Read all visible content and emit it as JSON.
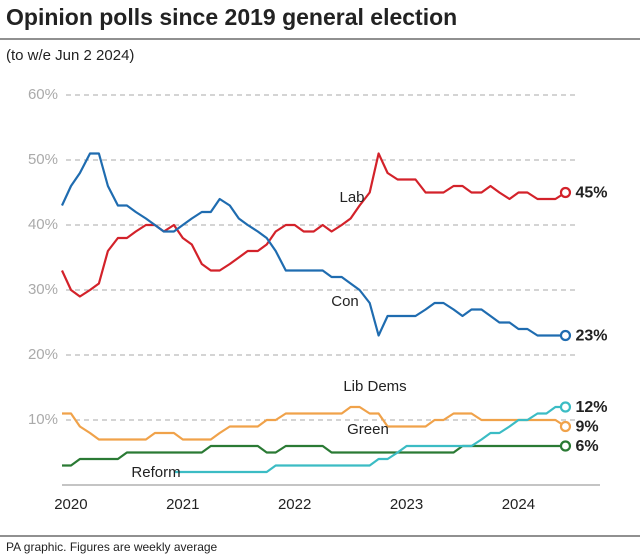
{
  "chart_data": {
    "type": "line",
    "title": "Opinion polls since 2019 general election",
    "subtitle": "(to w/e Jun 2 2024)",
    "footer": "PA graphic. Figures are weekly average",
    "x": [
      2019.92,
      2020.0,
      2020.08,
      2020.17,
      2020.25,
      2020.33,
      2020.42,
      2020.5,
      2020.58,
      2020.67,
      2020.75,
      2020.83,
      2020.92,
      2021.0,
      2021.08,
      2021.17,
      2021.25,
      2021.33,
      2021.42,
      2021.5,
      2021.58,
      2021.67,
      2021.75,
      2021.83,
      2021.92,
      2022.0,
      2022.08,
      2022.17,
      2022.25,
      2022.33,
      2022.42,
      2022.5,
      2022.58,
      2022.67,
      2022.75,
      2022.83,
      2022.92,
      2023.0,
      2023.08,
      2023.17,
      2023.25,
      2023.33,
      2023.42,
      2023.5,
      2023.58,
      2023.67,
      2023.75,
      2023.83,
      2023.92,
      2024.0,
      2024.08,
      2024.17,
      2024.25,
      2024.33,
      2024.42
    ],
    "xlim": [
      2019.92,
      2024.55
    ],
    "xticks": [
      {
        "value": 2020.5,
        "label": "2020"
      },
      {
        "value": 2021.5,
        "label": "2021"
      },
      {
        "value": 2022.5,
        "label": "2022"
      },
      {
        "value": 2023.5,
        "label": "2023"
      },
      {
        "value": 2024.5,
        "label": "2024"
      }
    ],
    "ylim": [
      0,
      60
    ],
    "yticks": [
      {
        "value": 10,
        "label": "10%"
      },
      {
        "value": 20,
        "label": "20%"
      },
      {
        "value": 30,
        "label": "30%"
      },
      {
        "value": 40,
        "label": "40%"
      },
      {
        "value": 50,
        "label": "50%"
      },
      {
        "value": 60,
        "label": "60%"
      }
    ],
    "grid": true,
    "series": [
      {
        "name": "Lab",
        "color": "#d3222a",
        "values": [
          33,
          30,
          29,
          30,
          31,
          36,
          38,
          38,
          39,
          40,
          40,
          39,
          40,
          38,
          37,
          34,
          33,
          33,
          34,
          35,
          36,
          36,
          37,
          39,
          40,
          40,
          39,
          39,
          40,
          39,
          40,
          41,
          43,
          45,
          51,
          48,
          47,
          47,
          47,
          45,
          45,
          45,
          46,
          46,
          45,
          45,
          46,
          45,
          44,
          45,
          45,
          44,
          44,
          44,
          45
        ],
        "value_labels": [
          null,
          null,
          null,
          null,
          null,
          null,
          null,
          null,
          null,
          null,
          null,
          null,
          null,
          null,
          null,
          null,
          null,
          null,
          null,
          null,
          null,
          null,
          null,
          null,
          null,
          null,
          null,
          null,
          null,
          null,
          null,
          null,
          null,
          null,
          null,
          null,
          null,
          null,
          null,
          null,
          null,
          null,
          null,
          null,
          null,
          null,
          null,
          null,
          null,
          null,
          null,
          null,
          null,
          null,
          "45%"
        ]
      },
      {
        "name": "Con",
        "color": "#1f6cb0",
        "values": [
          43,
          46,
          48,
          51,
          51,
          46,
          43,
          43,
          42,
          41,
          40,
          39,
          39,
          40,
          41,
          42,
          42,
          44,
          43,
          41,
          40,
          39,
          38,
          36,
          33,
          33,
          33,
          33,
          33,
          32,
          32,
          31,
          30,
          28,
          23,
          26,
          26,
          26,
          26,
          27,
          28,
          28,
          27,
          26,
          27,
          27,
          26,
          25,
          25,
          24,
          24,
          23,
          23,
          23,
          23
        ],
        "value_labels": [
          null,
          null,
          null,
          null,
          null,
          null,
          null,
          null,
          null,
          null,
          null,
          null,
          null,
          null,
          null,
          null,
          null,
          null,
          null,
          null,
          null,
          null,
          null,
          null,
          null,
          null,
          null,
          null,
          null,
          null,
          null,
          null,
          null,
          null,
          null,
          null,
          null,
          null,
          null,
          null,
          null,
          null,
          null,
          null,
          null,
          null,
          null,
          null,
          null,
          null,
          null,
          null,
          null,
          null,
          "23%"
        ]
      },
      {
        "name": "Lib Dems",
        "color": "#f0a24a",
        "values": [
          11,
          11,
          9,
          8,
          7,
          7,
          7,
          7,
          7,
          7,
          8,
          8,
          8,
          7,
          7,
          7,
          7,
          8,
          9,
          9,
          9,
          9,
          10,
          10,
          11,
          11,
          11,
          11,
          11,
          11,
          11,
          12,
          12,
          11,
          11,
          9,
          9,
          9,
          9,
          9,
          10,
          10,
          11,
          11,
          11,
          10,
          10,
          10,
          10,
          10,
          10,
          10,
          10,
          10,
          9
        ],
        "value_labels": [
          null,
          null,
          null,
          null,
          null,
          null,
          null,
          null,
          null,
          null,
          null,
          null,
          null,
          null,
          null,
          null,
          null,
          null,
          null,
          null,
          null,
          null,
          null,
          null,
          null,
          null,
          null,
          null,
          null,
          null,
          null,
          null,
          null,
          null,
          null,
          null,
          null,
          null,
          null,
          null,
          null,
          null,
          null,
          null,
          null,
          null,
          null,
          null,
          null,
          null,
          null,
          null,
          null,
          null,
          "9%"
        ]
      },
      {
        "name": "Green",
        "color": "#2a7a34",
        "values": [
          3,
          3,
          4,
          4,
          4,
          4,
          4,
          5,
          5,
          5,
          5,
          5,
          5,
          5,
          5,
          5,
          6,
          6,
          6,
          6,
          6,
          6,
          5,
          5,
          6,
          6,
          6,
          6,
          6,
          5,
          5,
          5,
          5,
          5,
          5,
          5,
          5,
          5,
          5,
          5,
          5,
          5,
          5,
          6,
          6,
          6,
          6,
          6,
          6,
          6,
          6,
          6,
          6,
          6,
          6
        ],
        "value_labels": [
          null,
          null,
          null,
          null,
          null,
          null,
          null,
          null,
          null,
          null,
          null,
          null,
          null,
          null,
          null,
          null,
          null,
          null,
          null,
          null,
          null,
          null,
          null,
          null,
          null,
          null,
          null,
          null,
          null,
          null,
          null,
          null,
          null,
          null,
          null,
          null,
          null,
          null,
          null,
          null,
          null,
          null,
          null,
          null,
          null,
          null,
          null,
          null,
          null,
          null,
          null,
          null,
          null,
          null,
          "6%"
        ]
      },
      {
        "name": "Reform",
        "color": "#3bbcc4",
        "values": [
          null,
          null,
          null,
          null,
          null,
          null,
          null,
          null,
          null,
          null,
          null,
          null,
          2,
          2,
          2,
          2,
          2,
          2,
          2,
          2,
          2,
          2,
          2,
          3,
          3,
          3,
          3,
          3,
          3,
          3,
          3,
          3,
          3,
          3,
          4,
          4,
          5,
          6,
          6,
          6,
          6,
          6,
          6,
          6,
          6,
          7,
          8,
          8,
          9,
          10,
          10,
          11,
          11,
          12,
          12
        ],
        "value_labels": [
          null,
          null,
          null,
          null,
          null,
          null,
          null,
          null,
          null,
          null,
          null,
          null,
          null,
          null,
          null,
          null,
          null,
          null,
          null,
          null,
          null,
          null,
          null,
          null,
          null,
          null,
          null,
          null,
          null,
          null,
          null,
          null,
          null,
          null,
          null,
          null,
          null,
          null,
          null,
          null,
          null,
          null,
          null,
          null,
          null,
          null,
          null,
          null,
          null,
          null,
          null,
          null,
          null,
          null,
          "12%"
        ]
      }
    ]
  }
}
